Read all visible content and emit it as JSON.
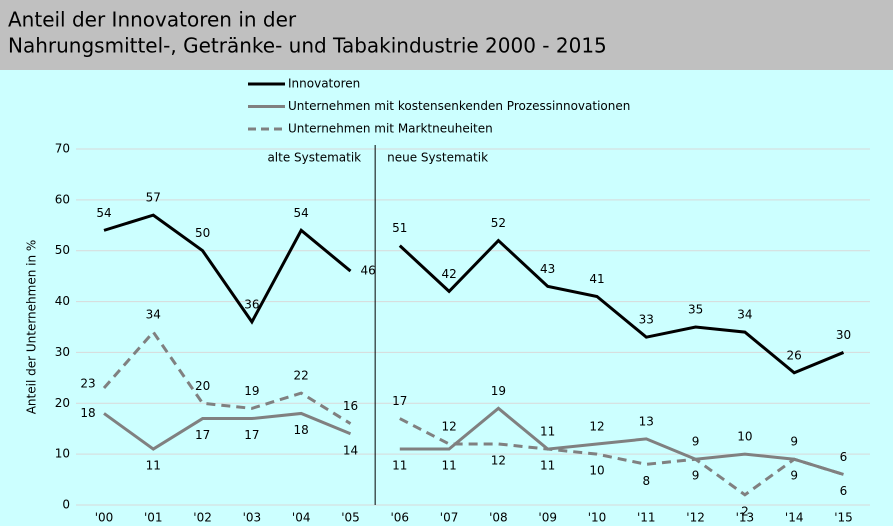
{
  "chart_data": {
    "type": "line",
    "title": [
      "Anteil der Innovatoren in der",
      "Nahrungsmittel-, Getränke- und Tabakindustrie 2000 - 2015"
    ],
    "y_label": "Anteil der Unternehmen in %",
    "categories": [
      "'00",
      "'01",
      "'02",
      "'03",
      "'04",
      "'05",
      "'06",
      "'07",
      "'08",
      "'09",
      "'10",
      "'11",
      "'12",
      "'13",
      "'14",
      "'15"
    ],
    "annotations": [
      "alte Systematik",
      "neue Systematik"
    ],
    "break_before": "'06",
    "series": [
      {
        "name": "Innovatoren",
        "color": "#000000",
        "dash": false,
        "values": [
          54,
          57,
          50,
          36,
          54,
          46,
          51,
          42,
          52,
          43,
          41,
          33,
          35,
          34,
          26,
          30
        ]
      },
      {
        "name": "Unternehmen mit kostensenkenden Prozessinnovationen",
        "color": "#808080",
        "dash": false,
        "values": [
          18,
          11,
          17,
          17,
          18,
          14,
          11,
          11,
          19,
          11,
          12,
          13,
          9,
          10,
          9,
          6
        ]
      },
      {
        "name": "Unternehmen mit Marktneuheiten",
        "color": "#808080",
        "dash": true,
        "values": [
          23,
          34,
          20,
          19,
          22,
          16,
          17,
          12,
          12,
          11,
          10,
          8,
          9,
          2,
          9,
          6
        ]
      }
    ],
    "ylim": [
      0,
      70
    ],
    "yticks": [
      0,
      10,
      20,
      30,
      40,
      50,
      60,
      70
    ],
    "grid": true
  }
}
